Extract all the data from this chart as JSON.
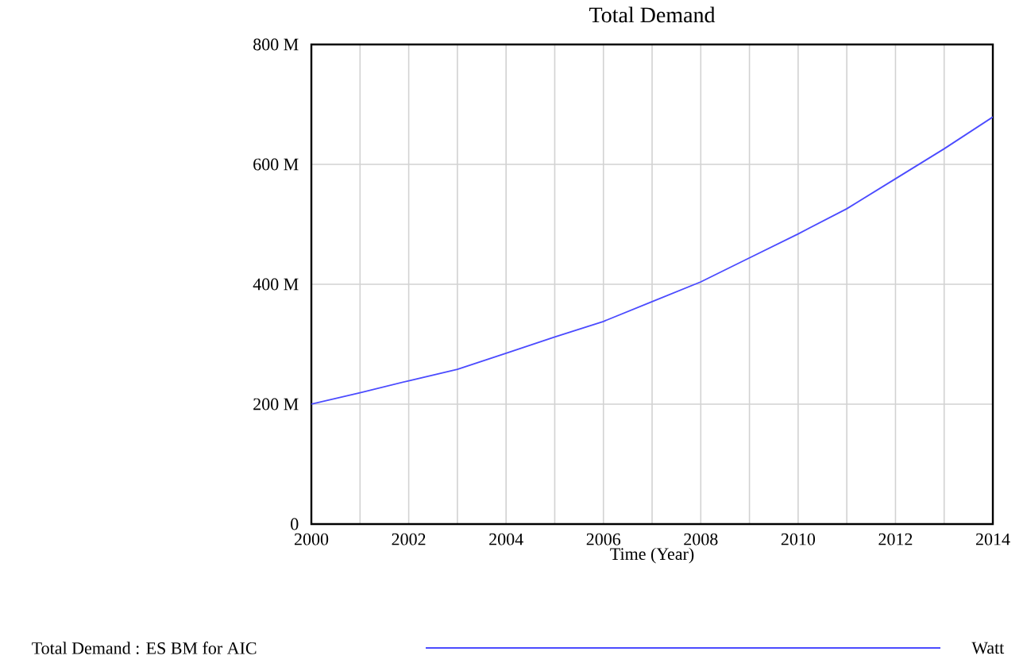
{
  "chart_data": {
    "type": "line",
    "title": "Total Demand",
    "xlabel": "Time (Year)",
    "x": [
      2000,
      2001,
      2002,
      2003,
      2004,
      2005,
      2006,
      2007,
      2008,
      2009,
      2010,
      2011,
      2012,
      2013,
      2014
    ],
    "series": [
      {
        "name": "Total Demand : ES BM for AIC",
        "color": "#4b4bff",
        "values": [
          200000000,
          219000000,
          239000000,
          258000000,
          285000000,
          312000000,
          338000000,
          371000000,
          404000000,
          444000000,
          484000000,
          526000000,
          576000000,
          626000000,
          679000000
        ]
      }
    ],
    "xlim": [
      2000,
      2014
    ],
    "xticks": [
      2000,
      {
        "value": 2001,
        "label": null
      },
      2002,
      {
        "value": 2003,
        "label": null
      },
      2004,
      {
        "value": 2005,
        "label": null
      },
      2006,
      {
        "value": 2007,
        "label": null
      },
      2008,
      {
        "value": 2009,
        "label": null
      },
      2010,
      {
        "value": 2011,
        "label": null
      },
      2012,
      {
        "value": 2013,
        "label": null
      },
      2014
    ],
    "ylim": [
      0,
      800000000
    ],
    "yticks": [
      {
        "value": 0,
        "label": "0"
      },
      {
        "value": 200000000,
        "label": "200 M"
      },
      {
        "value": 400000000,
        "label": "400 M"
      },
      {
        "value": 600000000,
        "label": "600 M"
      },
      {
        "value": 800000000,
        "label": "800 M"
      }
    ],
    "grid": true,
    "legend": "bottom",
    "marker": "none",
    "line_style": "solid",
    "annotations": [
      "Watt"
    ]
  }
}
